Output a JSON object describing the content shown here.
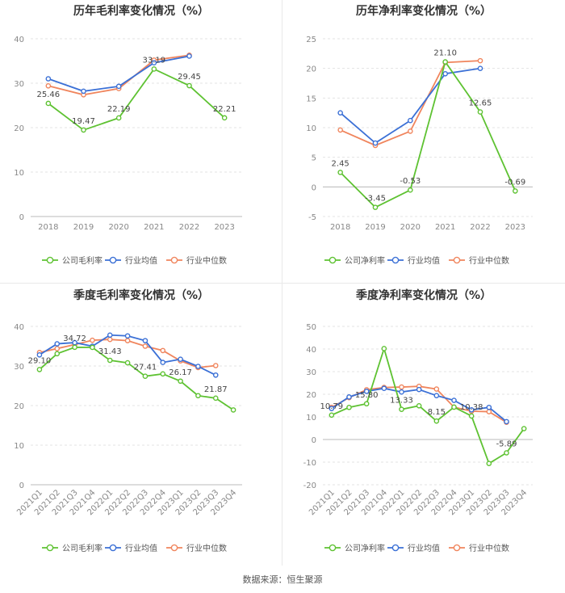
{
  "source": "数据来源：恒生聚源",
  "legend_labels": {
    "gross": [
      "公司毛利率",
      "行业均值",
      "行业中位数"
    ],
    "net": [
      "公司净利率",
      "行业均值",
      "行业中位数"
    ]
  },
  "colors": {
    "company": "#5ec232",
    "industry_avg": "#3b70d6",
    "industry_median": "#f0855d",
    "grid": "#e3e3e3",
    "axis_text": "#888888",
    "title": "#333333"
  },
  "chart_data": [
    {
      "id": "annual-gross",
      "type": "line",
      "title": "历年毛利率变化情况（%）",
      "categories": [
        "2018",
        "2019",
        "2020",
        "2021",
        "2022",
        "2023"
      ],
      "ylim": [
        0,
        40
      ],
      "yticks": [
        0,
        10,
        20,
        30,
        40
      ],
      "series": [
        {
          "name": "公司毛利率",
          "values": [
            25.46,
            19.47,
            22.19,
            33.19,
            29.45,
            22.21
          ]
        },
        {
          "name": "行业均值",
          "values": [
            31.0,
            28.2,
            29.3,
            34.6,
            36.1,
            null
          ]
        },
        {
          "name": "行业中位数",
          "values": [
            29.4,
            27.4,
            28.8,
            35.2,
            36.3,
            null
          ]
        }
      ],
      "labels": [
        "25.46",
        "19.47",
        "22.19",
        "33.19",
        "29.45",
        "22.21"
      ],
      "label_pos": [
        "above",
        "above",
        "above",
        "above",
        "above",
        "above"
      ]
    },
    {
      "id": "annual-net",
      "type": "line",
      "title": "历年净利率变化情况（%）",
      "categories": [
        "2018",
        "2019",
        "2020",
        "2021",
        "2022",
        "2023"
      ],
      "ylim": [
        -5,
        25
      ],
      "yticks": [
        -5,
        0,
        5,
        10,
        15,
        20,
        25
      ],
      "series": [
        {
          "name": "公司净利率",
          "values": [
            2.45,
            -3.45,
            -0.53,
            21.1,
            12.65,
            -0.69
          ]
        },
        {
          "name": "行业均值",
          "values": [
            12.5,
            7.4,
            11.2,
            19.1,
            20.0,
            null
          ]
        },
        {
          "name": "行业中位数",
          "values": [
            9.6,
            7.0,
            9.4,
            21.0,
            21.3,
            null
          ]
        }
      ],
      "labels": [
        "2.45",
        "-3.45",
        "-0.53",
        "21.10",
        "12.65",
        "-0.69"
      ],
      "label_pos": [
        "above",
        "above",
        "above",
        "above",
        "above",
        "above"
      ]
    },
    {
      "id": "quarterly-gross",
      "type": "line",
      "title": "季度毛利率变化情况（%）",
      "categories": [
        "2021Q1",
        "2021Q2",
        "2021Q3",
        "2021Q4",
        "2022Q1",
        "2022Q2",
        "2022Q3",
        "2022Q4",
        "2023Q1",
        "2023Q2",
        "2023Q3",
        "2023Q4"
      ],
      "ylim": [
        0,
        40
      ],
      "yticks": [
        0,
        10,
        20,
        30,
        40
      ],
      "series": [
        {
          "name": "公司毛利率",
          "values": [
            29.1,
            33.1,
            34.72,
            34.7,
            31.43,
            30.8,
            27.41,
            28.0,
            26.17,
            22.5,
            21.87,
            18.9
          ]
        },
        {
          "name": "行业均值",
          "values": [
            32.8,
            35.6,
            35.9,
            35.0,
            37.8,
            37.6,
            36.4,
            30.9,
            31.7,
            29.9,
            27.7,
            null
          ]
        },
        {
          "name": "行业中位数",
          "values": [
            33.4,
            34.4,
            35.4,
            36.5,
            36.7,
            36.4,
            35.0,
            33.9,
            31.3,
            29.6,
            30.1,
            null
          ]
        }
      ],
      "labels": [
        "29.10",
        "",
        "34.72",
        "",
        "31.43",
        "",
        "27.41",
        "",
        "26.17",
        "",
        "21.87",
        ""
      ],
      "label_pos": [
        "above",
        "above",
        "above",
        "above",
        "above",
        "above",
        "above",
        "above",
        "above",
        "above",
        "above",
        "above"
      ]
    },
    {
      "id": "quarterly-net",
      "type": "line",
      "title": "季度净利率变化情况（%）",
      "categories": [
        "2021Q1",
        "2021Q2",
        "2021Q3",
        "2021Q4",
        "2022Q1",
        "2022Q2",
        "2022Q3",
        "2022Q4",
        "2023Q1",
        "2023Q2",
        "2023Q3",
        "2023Q4"
      ],
      "ylim": [
        -20,
        50
      ],
      "yticks": [
        -20,
        -10,
        0,
        10,
        20,
        30,
        40,
        50
      ],
      "series": [
        {
          "name": "公司净利率",
          "values": [
            10.79,
            14.2,
            15.8,
            40.2,
            13.33,
            14.9,
            8.15,
            14.3,
            10.38,
            -10.6,
            -5.89,
            4.8
          ]
        },
        {
          "name": "行业均值",
          "values": [
            13.7,
            18.8,
            21.3,
            22.6,
            21.0,
            22.1,
            19.4,
            17.3,
            13.1,
            14.2,
            7.9,
            null
          ]
        },
        {
          "name": "行业中位数",
          "values": [
            14.2,
            18.5,
            22.0,
            23.0,
            23.2,
            23.5,
            22.3,
            14.3,
            12.5,
            12.3,
            7.6,
            null
          ]
        }
      ],
      "labels": [
        "10.79",
        "",
        "15.80",
        "",
        "13.33",
        "",
        "8.15",
        "",
        "10.38",
        "",
        "-5.89",
        ""
      ],
      "label_pos": [
        "above",
        "above",
        "above",
        "above",
        "above",
        "above",
        "above",
        "above",
        "above",
        "above",
        "above",
        "above"
      ]
    }
  ]
}
